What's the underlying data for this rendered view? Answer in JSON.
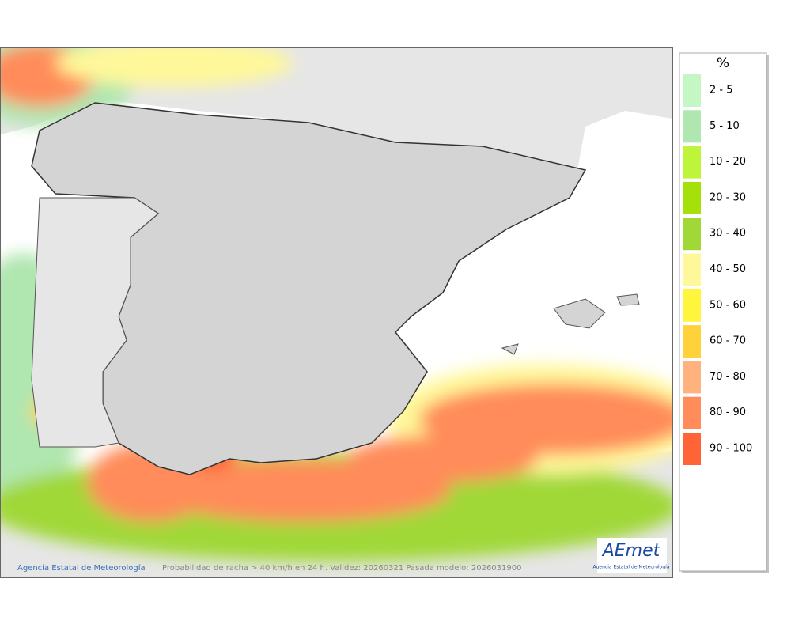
{
  "legend": {
    "title": "%",
    "items": [
      {
        "label": "2 - 5",
        "color": "#c4f7c4"
      },
      {
        "label": "5 - 10",
        "color": "#b0e6b0"
      },
      {
        "label": "10 - 20",
        "color": "#bef43a"
      },
      {
        "label": "20 - 30",
        "color": "#a6e00a"
      },
      {
        "label": "30 - 40",
        "color": "#a0d838"
      },
      {
        "label": "40 - 50",
        "color": "#fff89a"
      },
      {
        "label": "50 - 60",
        "color": "#fff53c"
      },
      {
        "label": "60 - 70",
        "color": "#ffd23c"
      },
      {
        "label": "70 - 80",
        "color": "#ffb27e"
      },
      {
        "label": "80 - 90",
        "color": "#ff8c5a"
      },
      {
        "label": "90 - 100",
        "color": "#ff6436"
      }
    ]
  },
  "footer": {
    "credit": "Agencia Estatal de Meteorología",
    "caption": "Probabilidad de racha > 40 km/h en 24 h. Validez: 20260321 Pasada modelo: 2026031900"
  },
  "logo": {
    "name": "AEmet",
    "subtitle": "Agencia Estatal de Meteorología"
  }
}
